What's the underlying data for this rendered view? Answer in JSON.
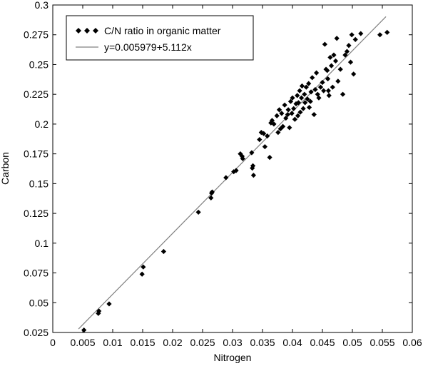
{
  "chart_data": {
    "type": "scatter",
    "title": "",
    "xlabel": "Nitrogen",
    "ylabel": "Carbon",
    "xlim": [
      0,
      0.06
    ],
    "ylim": [
      0.025,
      0.3
    ],
    "x_ticks": [
      "0",
      "0.005",
      "0.01",
      "0.015",
      "0.02",
      "0.025",
      "0.03",
      "0.035",
      "0.04",
      "0.045",
      "0.05",
      "0.055",
      "0.06"
    ],
    "y_ticks": [
      "0.025",
      "0.05",
      "0.075",
      "0.1",
      "0.125",
      "0.15",
      "0.175",
      "0.2",
      "0.225",
      "0.25",
      "0.275",
      "0.3"
    ],
    "grid": false,
    "legend_position": "top-left",
    "series": [
      {
        "name": "C/N ratio in organic matter",
        "kind": "scatter",
        "marker": "diamond",
        "color": "#000000",
        "points": [
          [
            0.0052,
            0.027
          ],
          [
            0.0076,
            0.041
          ],
          [
            0.0077,
            0.043
          ],
          [
            0.0094,
            0.049
          ],
          [
            0.0149,
            0.074
          ],
          [
            0.0151,
            0.08
          ],
          [
            0.0185,
            0.093
          ],
          [
            0.0243,
            0.126
          ],
          [
            0.0264,
            0.138
          ],
          [
            0.0265,
            0.142
          ],
          [
            0.0266,
            0.143
          ],
          [
            0.0289,
            0.155
          ],
          [
            0.0302,
            0.16
          ],
          [
            0.0306,
            0.161
          ],
          [
            0.0313,
            0.175
          ],
          [
            0.0316,
            0.173
          ],
          [
            0.0317,
            0.171
          ],
          [
            0.0332,
            0.176
          ],
          [
            0.0333,
            0.163
          ],
          [
            0.0334,
            0.165
          ],
          [
            0.0335,
            0.157
          ],
          [
            0.0345,
            0.187
          ],
          [
            0.0348,
            0.193
          ],
          [
            0.0352,
            0.192
          ],
          [
            0.0354,
            0.181
          ],
          [
            0.0358,
            0.19
          ],
          [
            0.0362,
            0.172
          ],
          [
            0.0364,
            0.201
          ],
          [
            0.0366,
            0.203
          ],
          [
            0.0369,
            0.2
          ],
          [
            0.0374,
            0.207
          ],
          [
            0.0376,
            0.193
          ],
          [
            0.0378,
            0.212
          ],
          [
            0.038,
            0.196
          ],
          [
            0.0382,
            0.209
          ],
          [
            0.0384,
            0.198
          ],
          [
            0.0387,
            0.216
          ],
          [
            0.0389,
            0.205
          ],
          [
            0.0392,
            0.208
          ],
          [
            0.0393,
            0.212
          ],
          [
            0.0395,
            0.197
          ],
          [
            0.0397,
            0.219
          ],
          [
            0.0399,
            0.209
          ],
          [
            0.04,
            0.222
          ],
          [
            0.0402,
            0.213
          ],
          [
            0.0404,
            0.204
          ],
          [
            0.0406,
            0.217
          ],
          [
            0.0408,
            0.224
          ],
          [
            0.0409,
            0.207
          ],
          [
            0.041,
            0.218
          ],
          [
            0.0412,
            0.228
          ],
          [
            0.0413,
            0.21
          ],
          [
            0.0415,
            0.222
          ],
          [
            0.0416,
            0.232
          ],
          [
            0.0418,
            0.213
          ],
          [
            0.042,
            0.225
          ],
          [
            0.0421,
            0.218
          ],
          [
            0.0423,
            0.231
          ],
          [
            0.0425,
            0.221
          ],
          [
            0.0427,
            0.234
          ],
          [
            0.0428,
            0.214
          ],
          [
            0.043,
            0.219
          ],
          [
            0.0431,
            0.227
          ],
          [
            0.0433,
            0.239
          ],
          [
            0.0436,
            0.208
          ],
          [
            0.0438,
            0.229
          ],
          [
            0.044,
            0.243
          ],
          [
            0.0442,
            0.225
          ],
          [
            0.0444,
            0.222
          ],
          [
            0.0447,
            0.231
          ],
          [
            0.045,
            0.235
          ],
          [
            0.0452,
            0.228
          ],
          [
            0.0454,
            0.267
          ],
          [
            0.0456,
            0.246
          ],
          [
            0.0458,
            0.245
          ],
          [
            0.0459,
            0.238
          ],
          [
            0.046,
            0.228
          ],
          [
            0.0461,
            0.224
          ],
          [
            0.0463,
            0.256
          ],
          [
            0.0465,
            0.249
          ],
          [
            0.0467,
            0.231
          ],
          [
            0.0469,
            0.258
          ],
          [
            0.0472,
            0.253
          ],
          [
            0.0474,
            0.272
          ],
          [
            0.0476,
            0.236
          ],
          [
            0.048,
            0.246
          ],
          [
            0.0484,
            0.225
          ],
          [
            0.0488,
            0.258
          ],
          [
            0.0491,
            0.261
          ],
          [
            0.0494,
            0.266
          ],
          [
            0.0497,
            0.252
          ],
          [
            0.0499,
            0.275
          ],
          [
            0.0502,
            0.242
          ],
          [
            0.0505,
            0.271
          ],
          [
            0.0514,
            0.276
          ],
          [
            0.0546,
            0.275
          ],
          [
            0.0558,
            0.277
          ]
        ]
      },
      {
        "name": "y=0.005979+5.112x",
        "kind": "line",
        "color": "#808080",
        "intercept": 0.005979,
        "slope": 5.112,
        "x_range": [
          0.0043,
          0.0556
        ]
      }
    ]
  }
}
